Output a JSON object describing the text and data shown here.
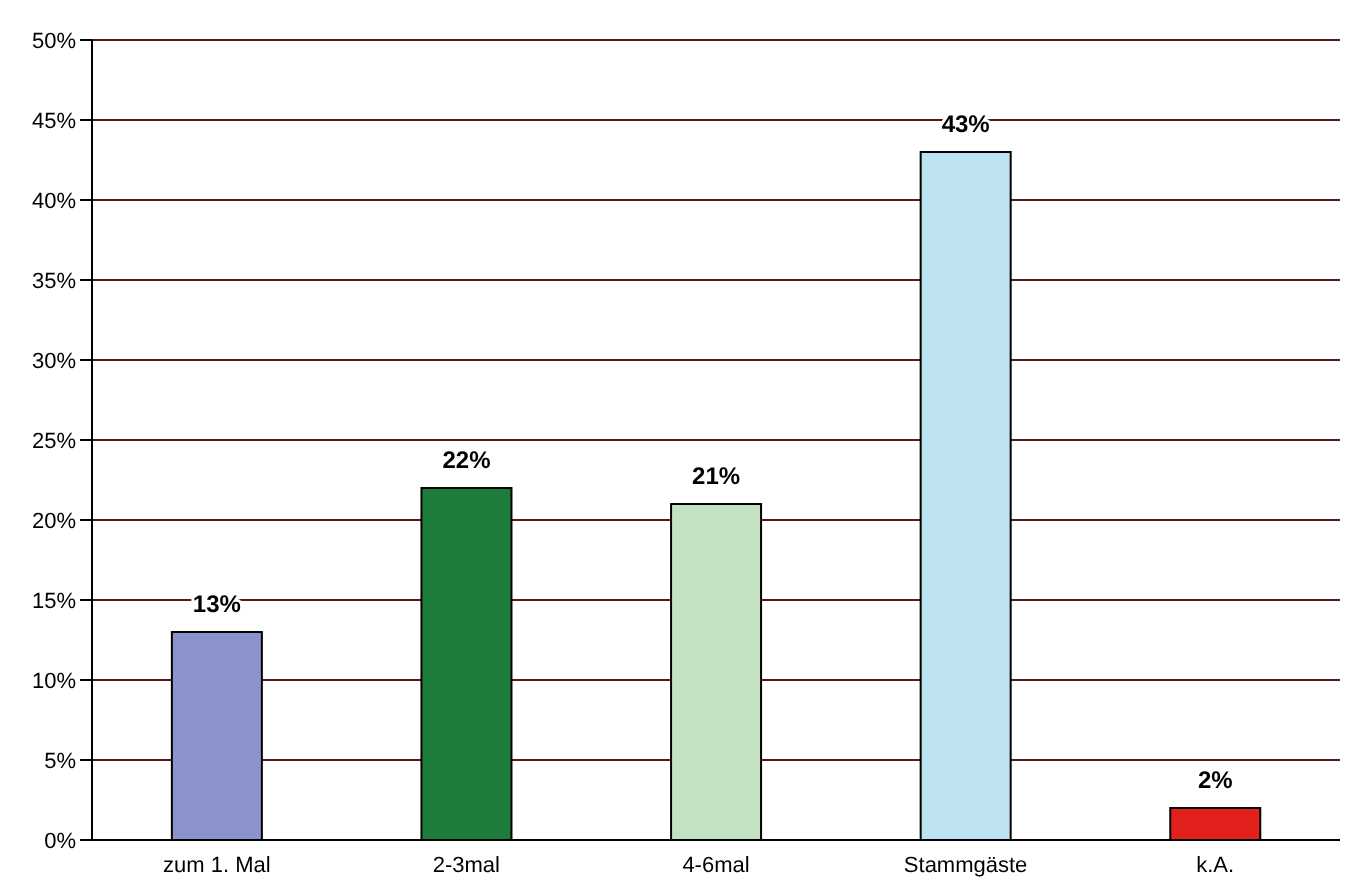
{
  "chart_data": {
    "type": "bar",
    "categories": [
      "zum 1. Mal",
      "2-3mal",
      "4-6mal",
      "Stammgäste",
      "k.A."
    ],
    "values": [
      13,
      22,
      21,
      43,
      2
    ],
    "colors": [
      "#8c92cc",
      "#1f7d3c",
      "#c2e2c2",
      "#bde3f0",
      "#e3211c"
    ],
    "value_labels": [
      "13%",
      "22%",
      "21%",
      "43%",
      "2%"
    ],
    "ylim": [
      0,
      50
    ],
    "yticks": [
      {
        "value": 0,
        "label": "0%"
      },
      {
        "value": 5,
        "label": "5%"
      },
      {
        "value": 10,
        "label": "10%"
      },
      {
        "value": 15,
        "label": "15%"
      },
      {
        "value": 20,
        "label": "20%"
      },
      {
        "value": 25,
        "label": "25%"
      },
      {
        "value": 30,
        "label": "30%"
      },
      {
        "value": 35,
        "label": "35%"
      },
      {
        "value": 40,
        "label": "40%"
      },
      {
        "value": 45,
        "label": "45%"
      },
      {
        "value": 50,
        "label": "50%"
      }
    ],
    "grid": "y"
  }
}
